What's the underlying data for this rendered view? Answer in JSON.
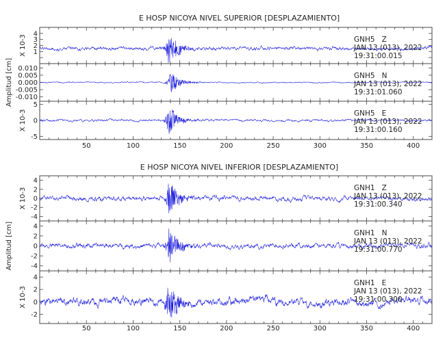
{
  "chart_data": [
    {
      "type": "line",
      "title": "E HOSP NICOYA NIVEL SUPERIOR [DESPLAZAMIENTO]",
      "ylabel": "Amplitud [cm]",
      "xlim": [
        0,
        420
      ],
      "xticks": [
        50,
        100,
        150,
        200,
        250,
        300,
        350,
        400
      ],
      "color": "#2222dd",
      "panels": [
        {
          "channel": "GNH5   Z",
          "date": "JAN 13 (013), 2022",
          "time": "19:31:00.015",
          "scale_label": "X 10-3",
          "ylim": [
            -1,
            5
          ],
          "yticks": [
            0,
            1,
            2,
            3,
            4
          ],
          "ytick_labels": [
            "",
            "1",
            "2",
            "3",
            "4"
          ],
          "baseline": 1.5,
          "amp": 0.4,
          "burst": 3.0,
          "burst_t": 138
        },
        {
          "channel": "GNH5   N",
          "date": "JAN 13 (013), 2022",
          "time": "19:31:01.060",
          "scale_label": "",
          "ylim": [
            -0.013,
            0.013
          ],
          "yticks": [
            0.01,
            0.005,
            0,
            -0.005,
            -0.01
          ],
          "ytick_labels": [
            "0.010",
            "0.005",
            "0.000",
            "-0.005",
            "-0.010"
          ],
          "baseline": 0,
          "amp": 0.0006,
          "burst": 0.0085,
          "burst_t": 140
        },
        {
          "channel": "GNH5   E",
          "date": "JAN 13 (013), 2022",
          "time": "19:31:00.160",
          "scale_label": "X 10-3",
          "ylim": [
            -6,
            6
          ],
          "yticks": [
            5,
            0,
            -5
          ],
          "ytick_labels": [
            "5",
            "0",
            "-5"
          ],
          "baseline": 0,
          "amp": 0.5,
          "burst": 5.0,
          "burst_t": 138
        }
      ]
    },
    {
      "type": "line",
      "title": "E HOSP NICOYA NIVEL INFERIOR [DESPLAZAMIENTO]",
      "ylabel": "Amplitud [cm]",
      "xlim": [
        0,
        420
      ],
      "xticks": [
        50,
        100,
        150,
        200,
        250,
        300,
        350,
        400
      ],
      "color": "#2222dd",
      "panels": [
        {
          "channel": "GNH1   Z",
          "date": "JAN 13 (013), 2022",
          "time": "19:31:00.340",
          "scale_label": "X 10-3",
          "ylim": [
            -5,
            5
          ],
          "yticks": [
            4,
            2,
            0,
            -2,
            -4
          ],
          "ytick_labels": [
            "4",
            "2",
            "0",
            "-2",
            "-4"
          ],
          "baseline": 0,
          "amp": 0.7,
          "burst": 4.2,
          "burst_t": 138
        },
        {
          "channel": "GNH1   N",
          "date": "JAN 13 (013), 2022",
          "time": "19:31:00.770",
          "scale_label": "",
          "ylim": [
            -5,
            5
          ],
          "yticks": [
            4,
            2,
            0,
            -2,
            -4
          ],
          "ytick_labels": [
            "4",
            "2",
            "0",
            "-2",
            "-4"
          ],
          "baseline": 0,
          "amp": 0.7,
          "burst": 4.2,
          "burst_t": 138
        },
        {
          "channel": "GNH1   E",
          "date": "JAN 13 (013), 2022",
          "time": "19:31:00.300",
          "scale_label": "X 10-3",
          "ylim": [
            -3.5,
            5
          ],
          "yticks": [
            4,
            2,
            0,
            -2
          ],
          "ytick_labels": [
            "4",
            "2",
            "0",
            "-2"
          ],
          "baseline": 0,
          "amp": 0.9,
          "burst": 3.6,
          "burst_t": 138
        }
      ]
    }
  ]
}
